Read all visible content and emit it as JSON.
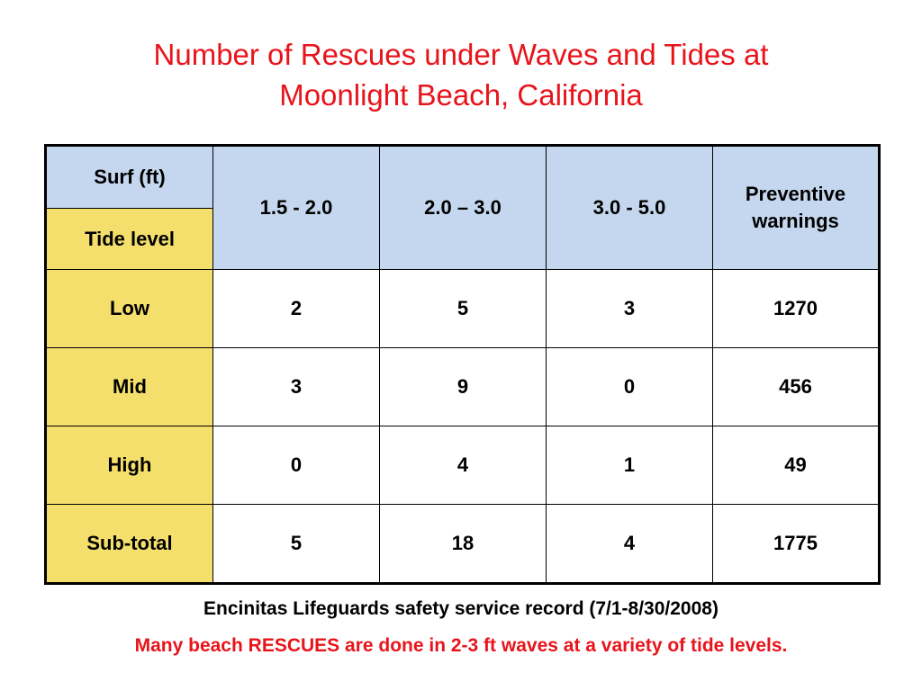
{
  "title": {
    "line1": "Number of Rescues under Waves and Tides at",
    "line2": "Moonlight Beach, California"
  },
  "table": {
    "surf_header": "Surf (ft)",
    "tide_header": "Tide level",
    "columns": [
      "1.5 - 2.0",
      "2.0 – 3.0",
      "3.0 - 5.0",
      "Preventive warnings"
    ],
    "rows": [
      {
        "label": "Low",
        "values": [
          "2",
          "5",
          "3",
          "1270"
        ]
      },
      {
        "label": "Mid",
        "values": [
          "3",
          "9",
          "0",
          "456"
        ]
      },
      {
        "label": "High",
        "values": [
          "0",
          "4",
          "1",
          "49"
        ]
      },
      {
        "label": "Sub-total",
        "values": [
          "5",
          "18",
          "4",
          "1775"
        ]
      }
    ]
  },
  "colors": {
    "title": "#e8141b",
    "header_blue": "#c5d7ee",
    "row_label_yellow": "#f5df6c",
    "highlight": "#d6390e",
    "note": "#e8141b"
  },
  "source_caption": "Encinitas Lifeguards safety service record (7/1-8/30/2008)",
  "note_caption": "Many beach RESCUES are done in 2-3 ft waves at a variety of tide levels."
}
